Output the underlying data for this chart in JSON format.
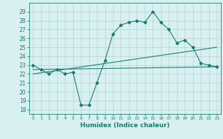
{
  "xlabel": "Humidex (Indice chaleur)",
  "x_ticks": [
    0,
    1,
    2,
    3,
    4,
    5,
    6,
    7,
    8,
    9,
    10,
    11,
    12,
    13,
    14,
    15,
    16,
    17,
    18,
    19,
    20,
    21,
    22,
    23
  ],
  "ylim": [
    17.5,
    30
  ],
  "y_ticks": [
    18,
    19,
    20,
    21,
    22,
    23,
    24,
    25,
    26,
    27,
    28,
    29
  ],
  "line1_x": [
    0,
    1,
    2,
    3,
    4,
    5,
    6,
    7,
    8,
    9,
    10,
    11,
    12,
    13,
    14,
    15,
    16,
    17,
    18,
    19,
    20,
    21,
    22,
    23
  ],
  "line1_y": [
    23.0,
    22.5,
    22.0,
    22.5,
    22.0,
    22.2,
    18.5,
    18.5,
    21.0,
    23.5,
    26.5,
    27.5,
    27.8,
    28.0,
    27.8,
    29.0,
    27.8,
    27.0,
    25.5,
    25.8,
    25.0,
    23.2,
    23.0,
    22.8
  ],
  "line2_x": [
    0,
    23
  ],
  "line2_y": [
    22.5,
    22.8
  ],
  "line3_x": [
    0,
    23
  ],
  "line3_y": [
    22.0,
    25.0
  ],
  "color": "#1a7a6e",
  "bg_color": "#d9f0f0",
  "grid_color": "#b0d4d4"
}
